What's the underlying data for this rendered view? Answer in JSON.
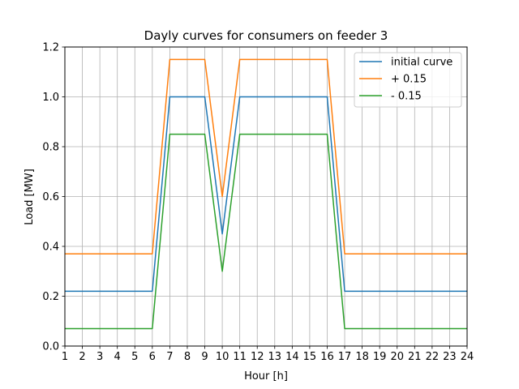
{
  "chart_data": {
    "type": "line",
    "title": "Dayly curves for consumers on feeder 3",
    "xlabel": "Hour [h]",
    "ylabel": "Load [MW]",
    "xlim": [
      1,
      24
    ],
    "ylim": [
      0,
      1.2
    ],
    "xticks": [
      1,
      2,
      3,
      4,
      5,
      6,
      7,
      8,
      9,
      10,
      11,
      12,
      13,
      14,
      15,
      16,
      17,
      18,
      19,
      20,
      21,
      22,
      23,
      24
    ],
    "yticks": [
      0.0,
      0.2,
      0.4,
      0.6,
      0.8,
      1.0,
      1.2
    ],
    "ytick_labels": [
      "0.0",
      "0.2",
      "0.4",
      "0.6",
      "0.8",
      "1.0",
      "1.2"
    ],
    "grid": true,
    "legend_position": "top-right",
    "x": [
      1,
      2,
      3,
      4,
      5,
      6,
      7,
      8,
      9,
      10,
      11,
      12,
      13,
      14,
      15,
      16,
      17,
      18,
      19,
      20,
      21,
      22,
      23,
      24
    ],
    "series": [
      {
        "name": "initial curve",
        "color": "#1f77b4",
        "values": [
          0.22,
          0.22,
          0.22,
          0.22,
          0.22,
          0.22,
          1.0,
          1.0,
          1.0,
          0.45,
          1.0,
          1.0,
          1.0,
          1.0,
          1.0,
          1.0,
          0.22,
          0.22,
          0.22,
          0.22,
          0.22,
          0.22,
          0.22,
          0.22
        ]
      },
      {
        "name": "+ 0.15",
        "color": "#ff7f0e",
        "values": [
          0.37,
          0.37,
          0.37,
          0.37,
          0.37,
          0.37,
          1.15,
          1.15,
          1.15,
          0.6,
          1.15,
          1.15,
          1.15,
          1.15,
          1.15,
          1.15,
          0.37,
          0.37,
          0.37,
          0.37,
          0.37,
          0.37,
          0.37,
          0.37
        ]
      },
      {
        "name": "- 0.15",
        "color": "#2ca02c",
        "values": [
          0.07,
          0.07,
          0.07,
          0.07,
          0.07,
          0.07,
          0.85,
          0.85,
          0.85,
          0.3,
          0.85,
          0.85,
          0.85,
          0.85,
          0.85,
          0.85,
          0.07,
          0.07,
          0.07,
          0.07,
          0.07,
          0.07,
          0.07,
          0.07
        ]
      }
    ]
  }
}
